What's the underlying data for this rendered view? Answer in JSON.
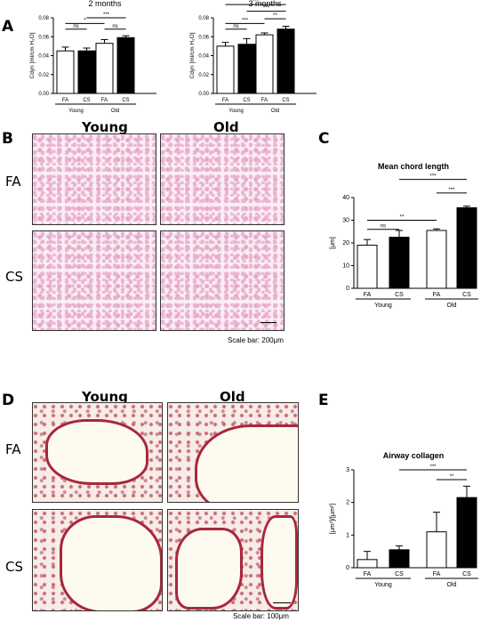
{
  "panel_labels": {
    "a": "A",
    "b": "B",
    "c": "C",
    "d": "D",
    "e": "E"
  },
  "panel_b": {
    "col_young": "Young",
    "col_old": "Old",
    "row_fa": "FA",
    "row_cs": "CS",
    "scale": "Scale bar: 200μm"
  },
  "panel_d": {
    "col_young": "Young",
    "col_old": "Old",
    "row_fa": "FA",
    "row_cs": "CS",
    "scale": "Scale bar: 100μm"
  },
  "chart_data": [
    {
      "id": "a1",
      "type": "bar",
      "title": "2 months",
      "ylabel": "Cdyn [ml/cm H₂O]",
      "ylim": [
        0,
        0.08
      ],
      "yticks": [
        "0.00",
        "0.02",
        "0.04",
        "0.06",
        "0.08"
      ],
      "categories": [
        "FA",
        "CS",
        "FA",
        "CS"
      ],
      "groups": [
        "Young",
        "Old"
      ],
      "values": [
        0.045,
        0.045,
        0.053,
        0.059
      ],
      "errors": [
        0.004,
        0.003,
        0.004,
        0.002
      ],
      "fills": [
        "#ffffff",
        "#000000",
        "#ffffff",
        "#000000"
      ],
      "sig": [
        "ns",
        "*",
        "ns",
        "***"
      ]
    },
    {
      "id": "a2",
      "type": "bar",
      "title": "3 months",
      "ylabel": "Cdyn [ml/cm H₂O]",
      "ylim": [
        0,
        0.08
      ],
      "yticks": [
        "0.00",
        "0.02",
        "0.04",
        "0.06",
        "0.08"
      ],
      "categories": [
        "FA",
        "CS",
        "FA",
        "CS"
      ],
      "groups": [
        "Young",
        "Old"
      ],
      "values": [
        0.05,
        0.052,
        0.062,
        0.068
      ],
      "errors": [
        0.004,
        0.006,
        0.002,
        0.003
      ],
      "fills": [
        "#ffffff",
        "#000000",
        "#ffffff",
        "#000000"
      ],
      "sig": [
        "ns",
        "***",
        "**",
        "***",
        "***"
      ]
    },
    {
      "id": "c",
      "type": "bar",
      "title": "Mean chord length",
      "ylabel": "[μm]",
      "ylim": [
        0,
        40
      ],
      "yticks": [
        "0",
        "10",
        "20",
        "30",
        "40"
      ],
      "categories": [
        "FA",
        "CS",
        "FA",
        "CS"
      ],
      "groups": [
        "Young",
        "Old"
      ],
      "values": [
        19,
        22.5,
        25.5,
        35.5
      ],
      "errors": [
        2.5,
        3,
        0.7,
        0.7
      ],
      "fills": [
        "#ffffff",
        "#000000",
        "#ffffff",
        "#000000"
      ],
      "sig": [
        "ns",
        "**",
        "***",
        "***"
      ]
    },
    {
      "id": "e",
      "type": "bar",
      "title": "Airway collagen",
      "ylabel": "[μm³]/[μm²]",
      "ylim": [
        0,
        3
      ],
      "yticks": [
        "0",
        "1",
        "2",
        "3"
      ],
      "categories": [
        "FA",
        "CS",
        "FA",
        "CS"
      ],
      "groups": [
        "Young",
        "Old"
      ],
      "values": [
        0.25,
        0.55,
        1.1,
        2.15
      ],
      "errors": [
        0.25,
        0.12,
        0.6,
        0.35
      ],
      "fills": [
        "#ffffff",
        "#000000",
        "#ffffff",
        "#000000"
      ],
      "sig": [
        "**",
        "***"
      ]
    }
  ]
}
